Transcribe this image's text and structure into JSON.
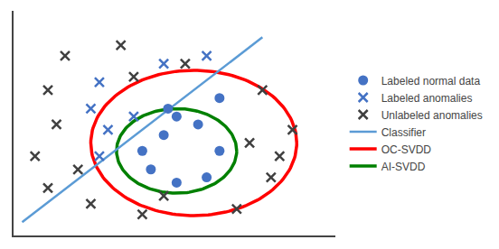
{
  "chart_data": {
    "type": "scatter",
    "xlim": [
      0,
      7.5
    ],
    "ylim": [
      1.0,
      9.5
    ],
    "tick_labels": false,
    "grid": false,
    "legend": "right",
    "series": [
      {
        "name": "Labeled normal data",
        "type": "scatter",
        "marker": "circle",
        "color": "#4472c4",
        "x": [
          4.8,
          3.8,
          3.5,
          3.0,
          3.2,
          3.8,
          4.5,
          4.8,
          4.3,
          3.6
        ],
        "y": [
          6.2,
          5.5,
          4.8,
          4.2,
          3.5,
          3.0,
          3.2,
          4.2,
          5.2,
          5.8
        ]
      },
      {
        "name": "Labeled anomalies",
        "type": "scatter",
        "marker": "x",
        "color": "#4472c4",
        "x": [
          2.0,
          1.8,
          2.2,
          2.0,
          3.5,
          4.5,
          2.8
        ],
        "y": [
          6.8,
          5.8,
          5.0,
          4.0,
          7.5,
          7.8,
          5.5
        ]
      },
      {
        "name": "Unlabeled anomalies",
        "type": "scatter",
        "marker": "x",
        "color": "#404040",
        "x": [
          1.2,
          2.5,
          0.8,
          1.0,
          0.5,
          0.8,
          1.8,
          3.0,
          5.2,
          6.0,
          6.5,
          5.8,
          5.5,
          2.8,
          4.0,
          6.2,
          3.5,
          1.5
        ],
        "y": [
          7.8,
          8.2,
          6.5,
          5.2,
          4.0,
          2.8,
          2.2,
          1.8,
          2.0,
          3.2,
          5.0,
          6.5,
          4.5,
          7.0,
          7.5,
          4.0,
          2.5,
          3.5
        ]
      },
      {
        "name": "Classifier",
        "type": "line",
        "color": "#5b9bd5",
        "x": [
          0.2,
          5.8
        ],
        "y": [
          1.5,
          8.5
        ]
      },
      {
        "name": "OC-SVDD",
        "type": "ellipse",
        "color": "red",
        "center": [
          4.2,
          4.5
        ],
        "width": 4.8,
        "height": 5.5,
        "angle": 0
      },
      {
        "name": "AI-SVDD",
        "type": "ellipse",
        "color": "green",
        "center": [
          3.8,
          4.2
        ],
        "width": 2.8,
        "height": 3.2,
        "angle": 0
      }
    ]
  }
}
